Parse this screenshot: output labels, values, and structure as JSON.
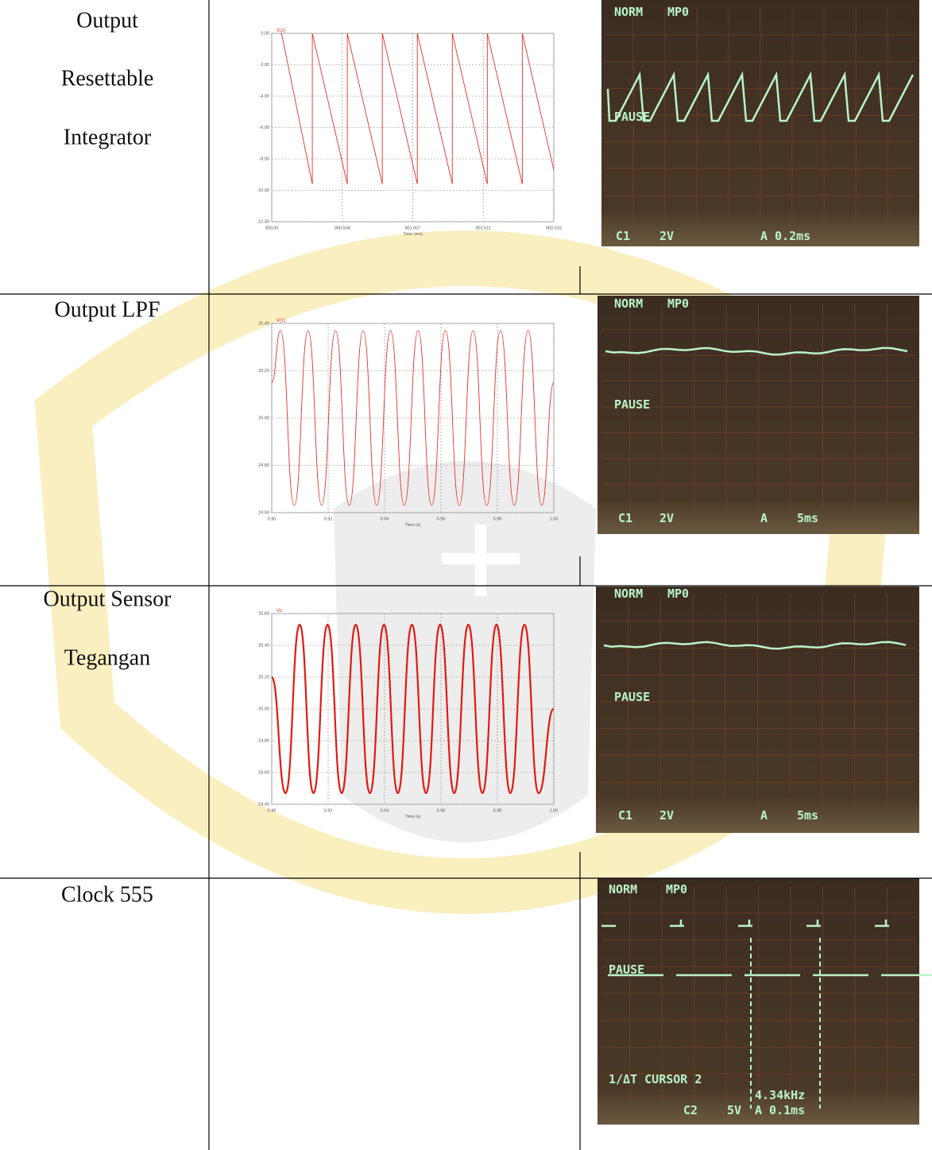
{
  "rows": [
    {
      "label": [
        "Output",
        "Resettable",
        "Integrator"
      ],
      "chart": {
        "type": "line",
        "series_label": "V(2)",
        "xlabel": "Time (ms)",
        "color": "#e8302a",
        "grid": true,
        "smooth": false,
        "xlim": [
          900.0,
          902.015
        ],
        "ylim": [
          -12,
          0
        ],
        "xticks": [
          {
            "value": 900.0,
            "label": "900.00"
          },
          900.504,
          901.007,
          901.511,
          902.015
        ],
        "yticks": [
          {
            "value": 0,
            "label": "0.00"
          },
          {
            "value": -2,
            "label": "-2.00"
          },
          {
            "value": -4,
            "label": "-4.00"
          },
          {
            "value": -6,
            "label": "-6.00"
          },
          {
            "value": -8,
            "label": "-8.00"
          },
          {
            "value": -10,
            "label": "-10.00"
          },
          {
            "value": -12,
            "label": "-12.00"
          }
        ],
        "x": [
          900.07,
          900.29,
          900.29,
          900.54,
          900.54,
          900.79,
          900.79,
          901.04,
          901.04,
          901.29,
          901.29,
          901.54,
          901.54,
          901.79,
          901.79,
          902.015
        ],
        "values": [
          0,
          -9.6,
          0,
          -9.6,
          0,
          -9.6,
          0,
          -9.6,
          0,
          -9.6,
          0,
          -9.6,
          0,
          -9.6,
          0,
          -8.7
        ]
      },
      "scope": [
        "NORM",
        "MP0",
        "PAUSE",
        "C1",
        "2V",
        "A 0.2ms"
      ]
    },
    {
      "label": [
        "Output LPF"
      ],
      "chart": {
        "type": "line",
        "series_label": "V(1)",
        "xlabel": "Time (s)",
        "color": "#e8302a",
        "grid": true,
        "smooth": true,
        "xlim": [
          0.9,
          1.0
        ],
        "ylim": [
          24.6,
          25.4
        ],
        "xticks": [
          {
            "value": 0.9,
            "label": "0.90"
          },
          0.92,
          0.94,
          0.96,
          0.98,
          {
            "value": 1.0,
            "label": "1.00"
          }
        ],
        "yticks": [
          {
            "value": 25.4,
            "label": "25.40"
          },
          {
            "value": 25.2,
            "label": "25.20"
          },
          {
            "value": 25.0,
            "label": "25.00"
          },
          {
            "value": 24.8,
            "label": "24.80"
          },
          {
            "value": 24.6,
            "label": "24.60"
          }
        ],
        "x": [
          0.9,
          0.9031,
          0.908,
          0.9129,
          0.9177,
          0.9226,
          0.9275,
          0.9324,
          0.9372,
          0.9421,
          0.947,
          0.9519,
          0.9567,
          0.9616,
          0.9665,
          0.9714,
          0.9762,
          0.9811,
          0.986,
          0.9909,
          0.9957,
          1.0
        ],
        "values": [
          25.15,
          25.37,
          24.63,
          25.37,
          24.63,
          25.37,
          24.63,
          25.37,
          24.63,
          25.37,
          24.63,
          25.37,
          24.63,
          25.37,
          24.63,
          25.37,
          24.63,
          25.37,
          24.63,
          25.37,
          24.63,
          25.15
        ]
      },
      "scope": [
        "NORM",
        "MP0",
        "PAUSE",
        "C1",
        "2V",
        "A",
        "5ms"
      ]
    },
    {
      "label": [
        "Output Sensor",
        "Tegangan"
      ],
      "chart": {
        "type": "line",
        "series_label": "Vo",
        "xlabel": "Time (s)",
        "color": "#e11a12",
        "grid": true,
        "smooth": true,
        "xlim": [
          0.9,
          1.0
        ],
        "ylim": [
          24.4,
          25.6
        ],
        "xticks": [
          {
            "value": 0.9,
            "label": "0.90"
          },
          0.92,
          0.94,
          0.96,
          0.98,
          {
            "value": 1.0,
            "label": "1.00"
          }
        ],
        "yticks": [
          {
            "value": 25.6,
            "label": "25.60"
          },
          {
            "value": 25.4,
            "label": "25.40"
          },
          {
            "value": 25.2,
            "label": "25.20"
          },
          {
            "value": 25.0,
            "label": "25.00"
          },
          {
            "value": 24.8,
            "label": "24.80"
          },
          {
            "value": 24.6,
            "label": "24.60"
          },
          {
            "value": 24.4,
            "label": "24.40"
          }
        ],
        "x": [
          0.9,
          0.9049,
          0.9099,
          0.9148,
          0.9198,
          0.9248,
          0.9298,
          0.9348,
          0.9398,
          0.9447,
          0.9497,
          0.9547,
          0.9597,
          0.9647,
          0.9697,
          0.9747,
          0.9797,
          0.9846,
          0.9896,
          0.9946,
          1.0
        ],
        "values": [
          25.2,
          24.47,
          25.53,
          24.47,
          25.53,
          24.47,
          25.53,
          24.47,
          25.53,
          24.47,
          25.53,
          24.47,
          25.53,
          24.47,
          25.53,
          24.47,
          25.53,
          24.47,
          25.53,
          24.47,
          25.0
        ]
      },
      "scope": [
        "NORM",
        "MP0",
        "PAUSE",
        "C1",
        "2V",
        "A",
        "5ms"
      ]
    },
    {
      "label": [
        "Clock 555"
      ],
      "scope": [
        "NORM",
        "MP0",
        "PAUSE",
        "1/ΔT CURSOR 2",
        "4.34kHz",
        "C2",
        "5V",
        "A 0.1ms"
      ]
    }
  ]
}
